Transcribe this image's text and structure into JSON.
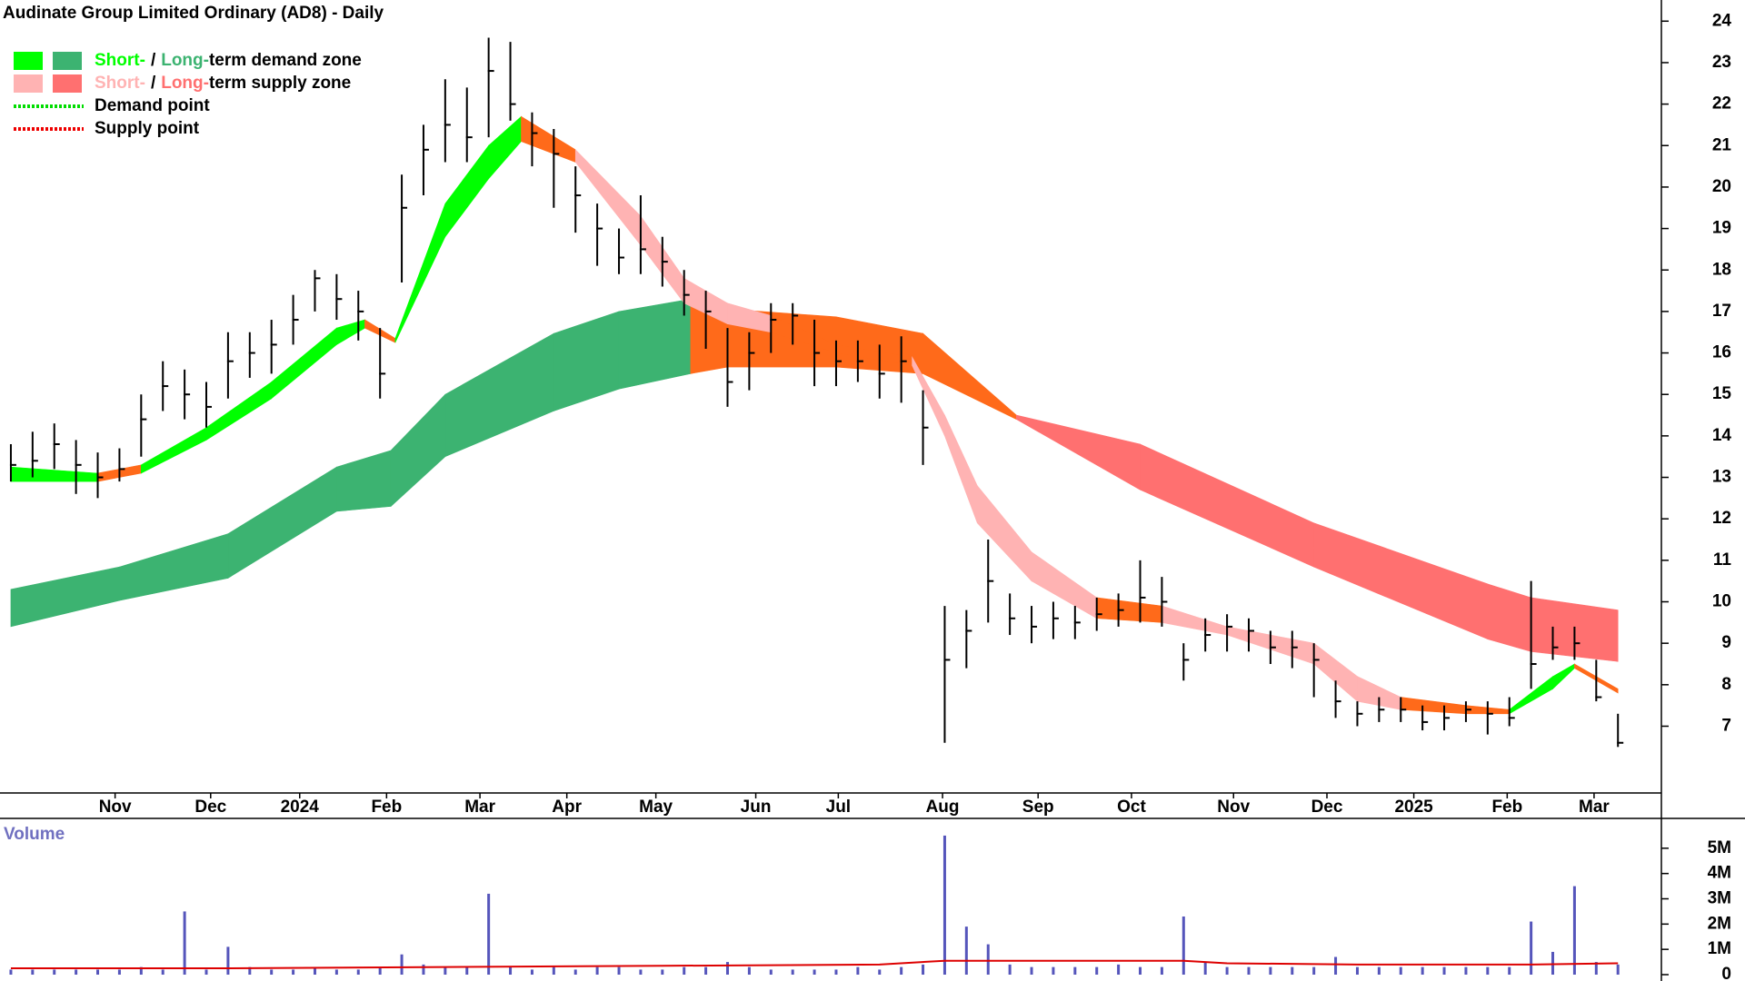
{
  "chart_data": {
    "type": "zone-candles",
    "title": "Audinate Group Limited Ordinary (AD8) - Daily",
    "legend": [
      {
        "short": "Short-",
        "sep": "/",
        "long": "Long-",
        "rest": "term demand zone",
        "colors": [
          "#00ff00",
          "#3cb371"
        ]
      },
      {
        "short": "Short-",
        "sep": "/",
        "long": "Long-",
        "rest": "term supply zone",
        "colors": [
          "#ffb3b3",
          "#ff7070"
        ]
      },
      {
        "label": "Demand point",
        "color": "#00dd00"
      },
      {
        "label": "Supply point",
        "color": "#ee0000"
      }
    ],
    "xlim": [
      -0.5,
      76
    ],
    "xticks": [
      {
        "value": 4.8,
        "label": "Nov"
      },
      {
        "value": 9.2,
        "label": "Dec"
      },
      {
        "value": 13.3,
        "label": "2024"
      },
      {
        "value": 17.3,
        "label": "Feb"
      },
      {
        "value": 21.6,
        "label": "Mar"
      },
      {
        "value": 25.6,
        "label": "Apr"
      },
      {
        "value": 29.7,
        "label": "May"
      },
      {
        "value": 34.3,
        "label": "Jun"
      },
      {
        "value": 38.1,
        "label": "Jul"
      },
      {
        "value": 42.9,
        "label": "Aug"
      },
      {
        "value": 47.3,
        "label": "Sep"
      },
      {
        "value": 51.6,
        "label": "Oct"
      },
      {
        "value": 56.3,
        "label": "Nov"
      },
      {
        "value": 60.6,
        "label": "Dec"
      },
      {
        "value": 64.6,
        "label": "2025"
      },
      {
        "value": 68.9,
        "label": "Feb"
      },
      {
        "value": 72.9,
        "label": "Mar"
      }
    ],
    "ylim": [
      5.39,
      24.51
    ],
    "yticks": [
      7,
      8,
      9,
      10,
      11,
      12,
      13,
      14,
      15,
      16,
      17,
      18,
      19,
      20,
      21,
      22,
      23,
      24
    ],
    "price": {
      "color": "#000000",
      "high": [
        13.8,
        14.1,
        14.3,
        13.9,
        13.6,
        13.7,
        15.0,
        15.8,
        15.6,
        15.3,
        16.5,
        16.5,
        16.8,
        17.4,
        18.0,
        17.9,
        17.5,
        16.6,
        20.3,
        21.5,
        22.6,
        22.4,
        23.6,
        23.5,
        21.8,
        21.4,
        20.5,
        19.6,
        19.0,
        19.8,
        18.8,
        18.0,
        17.5,
        16.6,
        16.5,
        17.2,
        17.2,
        16.8,
        16.3,
        16.3,
        16.2,
        16.4,
        15.1,
        9.9,
        9.8,
        11.5,
        10.2,
        9.9,
        10.0,
        9.9,
        10.1,
        10.2,
        11.0,
        10.6,
        9.0,
        9.6,
        9.7,
        9.6,
        9.3,
        9.3,
        9.0,
        8.1,
        7.6,
        7.7,
        7.7,
        7.5,
        7.5,
        7.6,
        7.6,
        7.7,
        10.5,
        9.4,
        9.4,
        8.6,
        7.3
      ],
      "low": [
        12.9,
        13.0,
        13.2,
        12.6,
        12.5,
        12.9,
        13.5,
        14.6,
        14.4,
        14.2,
        14.9,
        15.4,
        15.5,
        16.2,
        17.0,
        16.8,
        16.3,
        14.9,
        17.7,
        19.8,
        20.6,
        20.6,
        21.2,
        21.6,
        20.5,
        19.5,
        18.9,
        18.1,
        17.9,
        17.9,
        17.6,
        16.9,
        16.1,
        14.7,
        15.1,
        16.0,
        16.2,
        15.2,
        15.2,
        15.3,
        14.9,
        14.8,
        13.3,
        6.6,
        8.4,
        9.5,
        9.2,
        9.0,
        9.1,
        9.1,
        9.3,
        9.4,
        9.5,
        9.4,
        8.1,
        8.8,
        8.8,
        8.8,
        8.5,
        8.4,
        7.7,
        7.2,
        7.0,
        7.1,
        7.1,
        6.9,
        6.9,
        7.1,
        6.8,
        7.0,
        7.9,
        8.6,
        8.6,
        7.6,
        6.5
      ],
      "close": [
        13.3,
        13.4,
        13.8,
        13.3,
        13.0,
        13.2,
        14.4,
        15.2,
        15.0,
        14.7,
        15.8,
        16.0,
        16.2,
        16.8,
        17.8,
        17.3,
        17.0,
        15.5,
        19.5,
        20.9,
        21.5,
        21.2,
        22.8,
        22.0,
        21.3,
        20.8,
        19.8,
        19.0,
        18.3,
        18.5,
        18.2,
        17.4,
        17.0,
        15.3,
        16.0,
        16.8,
        16.9,
        16.0,
        15.8,
        15.8,
        15.5,
        15.8,
        14.2,
        8.6,
        9.3,
        10.5,
        9.6,
        9.4,
        9.6,
        9.5,
        9.7,
        9.8,
        10.1,
        10.0,
        8.6,
        9.2,
        9.4,
        9.3,
        8.9,
        8.9,
        8.6,
        7.6,
        7.3,
        7.4,
        7.4,
        7.1,
        7.2,
        7.4,
        7.3,
        7.2,
        8.5,
        8.9,
        9.0,
        7.7,
        6.6
      ]
    },
    "long_zone": {
      "x": [
        0,
        5,
        10,
        15,
        17.5,
        20,
        25,
        28,
        31.3,
        33,
        38,
        42,
        46.3,
        52,
        60,
        68,
        70,
        74
      ],
      "upper": [
        10.3,
        10.84,
        11.64,
        13.25,
        13.65,
        15.0,
        16.47,
        17.0,
        17.3,
        17.06,
        16.87,
        16.47,
        14.5,
        13.8,
        11.9,
        10.43,
        10.1,
        9.8
      ],
      "lower": [
        9.4,
        10.03,
        10.57,
        12.18,
        12.3,
        13.5,
        14.6,
        15.13,
        15.5,
        15.66,
        15.66,
        15.5,
        14.4,
        12.7,
        10.84,
        9.1,
        8.8,
        8.56
      ],
      "colors": [
        "#3cb371",
        "#3cb371",
        "#3cb371",
        "#3cb371",
        "#3cb371",
        "#3cb371",
        "#3cb371",
        "#3cb371",
        "#ff6a1a",
        "#ff6a1a",
        "#ff6a1a",
        "#ff6a1a",
        "#ff7070",
        "#ff7070",
        "#ff7070",
        "#ff7070",
        "#ff7070"
      ]
    },
    "short_zone": {
      "x": [
        0,
        4,
        6,
        9,
        12,
        15,
        16.3,
        17.7,
        20,
        22,
        23.5,
        26,
        29,
        31,
        33,
        35,
        38,
        41.5,
        43,
        44.5,
        47,
        50,
        53,
        56,
        60,
        62,
        64,
        67,
        69,
        71,
        72,
        74
      ],
      "upper": [
        13.25,
        13.1,
        13.3,
        14.2,
        15.3,
        16.6,
        16.8,
        16.35,
        19.6,
        21.0,
        21.7,
        20.9,
        19.3,
        17.8,
        17.2,
        16.9,
        16.2,
        15.9,
        14.5,
        12.8,
        11.2,
        10.1,
        9.9,
        9.4,
        9.0,
        8.2,
        7.7,
        7.5,
        7.4,
        8.2,
        8.5,
        7.9
      ],
      "lower": [
        12.9,
        12.9,
        13.1,
        13.9,
        14.9,
        16.2,
        16.6,
        16.25,
        18.8,
        20.2,
        21.1,
        20.6,
        18.6,
        17.2,
        16.7,
        16.5,
        16.0,
        15.7,
        14.0,
        11.9,
        10.5,
        9.6,
        9.5,
        9.2,
        8.5,
        7.6,
        7.4,
        7.3,
        7.3,
        7.9,
        8.4,
        7.8
      ],
      "colors": [
        "#00ff00",
        "#ff6a1a",
        "#00ff00",
        "#00ff00",
        "#00ff00",
        "#00ff00",
        "#ff6a1a",
        "#00ff00",
        "#00ff00",
        "#00ff00",
        "#ff6a1a",
        "#ffb3b3",
        "#ffb3b3",
        "#ffb3b3",
        "#ffb3b3",
        "#ff6a1a",
        "#ff6a1a",
        "#ffb3b3",
        "#ffb3b3",
        "#ffb3b3",
        "#ffb3b3",
        "#ff6a1a",
        "#ffb3b3",
        "#ffb3b3",
        "#ffb3b3",
        "#ffb3b3",
        "#ff6a1a",
        "#ff6a1a",
        "#00ff00",
        "#00ff00",
        "#ff6a1a"
      ]
    },
    "volume": {
      "title": "Volume",
      "color": "#5555bb",
      "ylim": [
        0,
        6
      ],
      "yticks": [
        {
          "value": 0,
          "label": "0"
        },
        {
          "value": 1,
          "label": "1M"
        },
        {
          "value": 2,
          "label": "2M"
        },
        {
          "value": 3,
          "label": "3M"
        },
        {
          "value": 4,
          "label": "4M"
        },
        {
          "value": 5,
          "label": "5M"
        }
      ],
      "values": [
        0.2,
        0.2,
        0.2,
        0.2,
        0.2,
        0.2,
        0.3,
        0.2,
        2.5,
        0.2,
        1.1,
        0.3,
        0.2,
        0.2,
        0.3,
        0.2,
        0.2,
        0.3,
        0.8,
        0.4,
        0.3,
        0.3,
        3.2,
        0.3,
        0.2,
        0.3,
        0.2,
        0.3,
        0.3,
        0.2,
        0.2,
        0.3,
        0.3,
        0.5,
        0.3,
        0.2,
        0.2,
        0.2,
        0.2,
        0.3,
        0.2,
        0.3,
        0.4,
        5.5,
        1.9,
        1.2,
        0.4,
        0.3,
        0.3,
        0.3,
        0.3,
        0.4,
        0.3,
        0.3,
        2.3,
        0.5,
        0.3,
        0.3,
        0.3,
        0.3,
        0.3,
        0.7,
        0.3,
        0.3,
        0.3,
        0.3,
        0.3,
        0.3,
        0.3,
        0.3,
        2.1,
        0.9,
        3.5,
        0.5,
        0.4
      ],
      "ma": {
        "color": "#dd0000",
        "x": [
          0,
          10,
          20,
          30,
          40,
          43,
          46,
          54,
          56,
          62,
          70,
          74
        ],
        "values": [
          0.25,
          0.25,
          0.3,
          0.35,
          0.4,
          0.55,
          0.55,
          0.55,
          0.45,
          0.4,
          0.4,
          0.45
        ]
      }
    }
  }
}
